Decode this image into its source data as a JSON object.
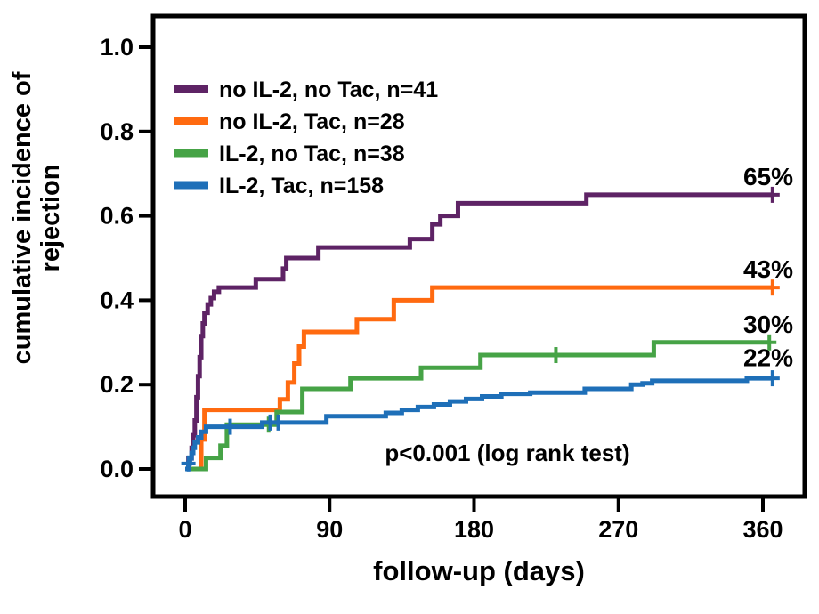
{
  "figure": {
    "background": "#ffffff",
    "frame_color": "#000000",
    "text_color": "#000000"
  },
  "chart_data": {
    "type": "line",
    "subtype": "cumulative-incidence-step-curves",
    "title": "",
    "xlabel": "follow-up (days)",
    "ylabel_line1": "cumulative incidence of",
    "ylabel_line2": "rejection",
    "annotation": "p<0.001 (log rank test)",
    "legend_position": "top-left-inside",
    "grid": false,
    "xlim": [
      0,
      372
    ],
    "ylim": [
      0.0,
      1.05
    ],
    "x_tick_values": [
      0,
      90,
      180,
      270,
      360
    ],
    "x_tick_labels": [
      "0",
      "90",
      "180",
      "270",
      "360"
    ],
    "y_tick_values": [
      0.0,
      0.2,
      0.4,
      0.6,
      0.8,
      1.0
    ],
    "y_tick_labels": [
      "0.0",
      "0.2",
      "0.4",
      "0.6",
      "0.8",
      "1.0"
    ],
    "series": [
      {
        "name": "no IL-2, no Tac, n=41",
        "color": "#5E2365",
        "final_label": "65%",
        "final_value": 0.65,
        "steps": [
          [
            0,
            0
          ],
          [
            2,
            0.025
          ],
          [
            4,
            0.05
          ],
          [
            5,
            0.08
          ],
          [
            6,
            0.115
          ],
          [
            7,
            0.17
          ],
          [
            8,
            0.22
          ],
          [
            9,
            0.265
          ],
          [
            10,
            0.315
          ],
          [
            11,
            0.345
          ],
          [
            12,
            0.37
          ],
          [
            14,
            0.39
          ],
          [
            16,
            0.405
          ],
          [
            18,
            0.42
          ],
          [
            21,
            0.43
          ],
          [
            44,
            0.45
          ],
          [
            61,
            0.475
          ],
          [
            63,
            0.5
          ],
          [
            83,
            0.525
          ],
          [
            140,
            0.545
          ],
          [
            154,
            0.58
          ],
          [
            159,
            0.6
          ],
          [
            170,
            0.63
          ],
          [
            250,
            0.65
          ],
          [
            366,
            0.65
          ]
        ],
        "censor_marks": [
          [
            366,
            0.65
          ]
        ]
      },
      {
        "name": "no IL-2, Tac, n=28",
        "color": "#FF6A10",
        "final_label": "43%",
        "final_value": 0.43,
        "steps": [
          [
            0,
            0
          ],
          [
            10,
            0.07
          ],
          [
            12,
            0.14
          ],
          [
            59,
            0.165
          ],
          [
            64,
            0.205
          ],
          [
            68,
            0.25
          ],
          [
            71,
            0.29
          ],
          [
            74,
            0.325
          ],
          [
            107,
            0.355
          ],
          [
            130,
            0.4
          ],
          [
            154,
            0.43
          ],
          [
            366,
            0.43
          ]
        ],
        "censor_marks": [
          [
            366,
            0.43
          ]
        ]
      },
      {
        "name": "IL-2, no Tac, n=38",
        "color": "#46A346",
        "final_label": "30%",
        "final_value": 0.3,
        "steps": [
          [
            0,
            0
          ],
          [
            13,
            0.026
          ],
          [
            22,
            0.055
          ],
          [
            26,
            0.105
          ],
          [
            57,
            0.135
          ],
          [
            73,
            0.19
          ],
          [
            103,
            0.215
          ],
          [
            147,
            0.24
          ],
          [
            184,
            0.27
          ],
          [
            292,
            0.3
          ],
          [
            364,
            0.3
          ]
        ],
        "censor_marks": [
          [
            52,
            0.105
          ],
          [
            231,
            0.27
          ],
          [
            364,
            0.3
          ]
        ]
      },
      {
        "name": "IL-2, Tac, n=158",
        "color": "#1E6FB8",
        "final_label": "22%",
        "final_value": 0.22,
        "steps": [
          [
            0,
            0
          ],
          [
            2,
            0.013
          ],
          [
            3,
            0.025
          ],
          [
            4,
            0.038
          ],
          [
            5,
            0.05
          ],
          [
            6,
            0.063
          ],
          [
            8,
            0.075
          ],
          [
            10,
            0.088
          ],
          [
            13,
            0.1
          ],
          [
            48,
            0.11
          ],
          [
            88,
            0.125
          ],
          [
            125,
            0.133
          ],
          [
            135,
            0.14
          ],
          [
            145,
            0.147
          ],
          [
            155,
            0.153
          ],
          [
            165,
            0.16
          ],
          [
            175,
            0.166
          ],
          [
            185,
            0.172
          ],
          [
            197,
            0.178
          ],
          [
            215,
            0.181
          ],
          [
            249,
            0.19
          ],
          [
            278,
            0.2
          ],
          [
            285,
            0.203
          ],
          [
            291,
            0.209
          ],
          [
            350,
            0.215
          ],
          [
            366,
            0.215
          ]
        ],
        "censor_marks": [
          [
            2,
            0.013
          ],
          [
            28,
            0.1
          ],
          [
            53,
            0.11
          ],
          [
            58,
            0.11
          ],
          [
            366,
            0.215
          ]
        ]
      }
    ]
  }
}
